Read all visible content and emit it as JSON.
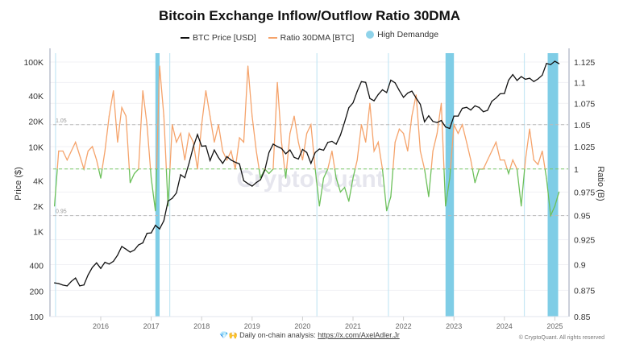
{
  "chart_data": {
    "type": "line",
    "title": "Bitcoin Exchange Inflow/Outflow Ratio 30DMA",
    "legend": [
      {
        "name": "BTC Price [USD]",
        "color": "#111111",
        "kind": "line"
      },
      {
        "name": "Ratio 30DMA [BTC]",
        "color": "#f5a36b",
        "kind": "line"
      },
      {
        "name": "High Demandge",
        "color": "#8fd3ea",
        "kind": "dot"
      }
    ],
    "legend_placement": "top-center",
    "ylabel_left": "Price ($)",
    "ylabel_right": "Ratio (B)",
    "y_left_scale": "log",
    "y_left_range": [
      100,
      130000
    ],
    "y_left_ticks": [
      100,
      200,
      400,
      1000,
      2000,
      4000,
      10000,
      20000,
      40000,
      100000
    ],
    "y_left_tick_labels": [
      "100",
      "200",
      "400",
      "1K",
      "2K",
      "4K",
      "10K",
      "20K",
      "40K",
      "100K"
    ],
    "y_right_scale": "log",
    "y_right_range": [
      0.85,
      1.125
    ],
    "y_right_ticks": [
      0.85,
      0.875,
      0.9,
      0.925,
      0.95,
      0.975,
      1,
      1.025,
      1.05,
      1.075,
      1.1,
      1.125
    ],
    "y_right_tick_labels": [
      "0.85",
      "0.875",
      "0.9",
      "0.925",
      "0.95",
      "0.975",
      "1",
      "1.025",
      "1.05",
      "1.075",
      "1.1",
      "1.125"
    ],
    "x_ticks": [
      "2016",
      "2017",
      "2018",
      "2019",
      "2020",
      "2021",
      "2022",
      "2023",
      "2024",
      "2025"
    ],
    "x_start": "2015-02",
    "reference_lines": [
      {
        "value": 1.05,
        "label": "1.05",
        "color": "#bbbbbb"
      },
      {
        "value": 1,
        "label": "",
        "color": "#7cc96a"
      },
      {
        "value": 0.95,
        "label": "0.95",
        "color": "#bbbbbb"
      }
    ],
    "ratio_above_color": "#f5a36b",
    "ratio_below_color": "#6cc05a",
    "grid": true,
    "series": [
      {
        "name": "BTC Price [USD]",
        "axis": "left",
        "values": [
          250,
          245,
          235,
          230,
          260,
          285,
          230,
          236,
          310,
          380,
          430,
          370,
          437,
          416,
          448,
          530,
          670,
          624,
          575,
          609,
          700,
          740,
          960,
          970,
          1190,
          1080,
          1350,
          2300,
          2480,
          2870,
          4700,
          4340,
          6450,
          10000,
          14000,
          10200,
          10300,
          6900,
          9200,
          7500,
          6400,
          7700,
          7000,
          6600,
          6300,
          4000,
          3700,
          3450,
          3800,
          4100,
          5300,
          8600,
          10800,
          10100,
          9600,
          8300,
          9200,
          7550,
          7200,
          9350,
          8600,
          6400,
          8600,
          9450,
          9140,
          11300,
          11650,
          10780,
          13800,
          19700,
          29000,
          33100,
          45200,
          58800,
          57700,
          37300,
          35000,
          41500,
          47100,
          43800,
          61300,
          57000,
          46300,
          38500,
          43200,
          45500,
          37700,
          31800,
          19800,
          23300,
          20000,
          19400,
          20500,
          17200,
          16500,
          23100,
          23100,
          28500,
          29300,
          27200,
          30500,
          29200,
          26000,
          27000,
          34500,
          37700,
          42300,
          42600,
          61200,
          71300,
          60700,
          67500,
          62700,
          64600,
          59000,
          63300,
          70200,
          96400,
          93400,
          102400,
          96000
        ]
      },
      {
        "name": "Ratio 30DMA [BTC]",
        "axis": "right",
        "values": [
          0.96,
          1.02,
          1.02,
          1.01,
          1.02,
          1.03,
          1.015,
          1.0,
          1.02,
          1.025,
          1.01,
          0.99,
          1.02,
          1.06,
          1.09,
          1.03,
          1.07,
          1.06,
          0.985,
          0.995,
          1.0,
          1.09,
          1.05,
          0.99,
          0.955,
          1.12,
          1.06,
          0.96,
          1.05,
          1.03,
          1.04,
          1.01,
          1.04,
          1.03,
          1.0,
          1.05,
          1.09,
          1.06,
          1.03,
          1.05,
          1.02,
          1.01,
          1.02,
          1.0,
          1.035,
          1.03,
          1.12,
          1.06,
          1.02,
          0.99,
          1.0,
          0.995,
          1.0,
          1.1,
          1.03,
          0.99,
          1.04,
          1.06,
          1.03,
          1.01,
          1.04,
          1.05,
          1.0,
          0.96,
          0.99,
          1.0,
          1.02,
          0.99,
          0.975,
          0.98,
          0.965,
          0.99,
          1.01,
          1.05,
          1.03,
          1.075,
          1.02,
          1.03,
          1.0,
          0.955,
          0.97,
          1.03,
          1.045,
          1.04,
          1.02,
          1.06,
          1.085,
          1.02,
          1.0,
          0.97,
          1.02,
          1.04,
          1.075,
          0.96,
          0.99,
          1.05,
          1.04,
          1.05,
          1.03,
          1.01,
          0.985,
          1.0,
          1.0,
          1.01,
          1.02,
          1.03,
          1.01,
          1.01,
          0.995,
          1.01,
          1.0,
          0.96,
          1.01,
          1.045,
          1.01,
          1.005,
          1.02,
          0.99,
          0.95,
          0.96,
          0.975
        ]
      }
    ],
    "high_demand_periods": [
      [
        "2015-02-05",
        "2015-02-10"
      ],
      [
        "2017-02-01",
        "2017-03-01"
      ],
      [
        "2017-05-10",
        "2017-05-14"
      ],
      [
        "2020-04-10",
        "2020-04-14"
      ],
      [
        "2021-09-10",
        "2021-09-14"
      ],
      [
        "2022-11-01",
        "2023-01-01"
      ],
      [
        "2024-05-20",
        "2024-05-24"
      ],
      [
        "2024-11-10",
        "2025-01-25"
      ]
    ],
    "watermark": "CryptoQuant"
  },
  "footer": {
    "emoji": "💎🙌",
    "text": "Daily on-chain analysis: ",
    "link": "https://x.com/AxelAdler.Jr",
    "copyright": "© CryptoQuant. All rights reserved"
  }
}
